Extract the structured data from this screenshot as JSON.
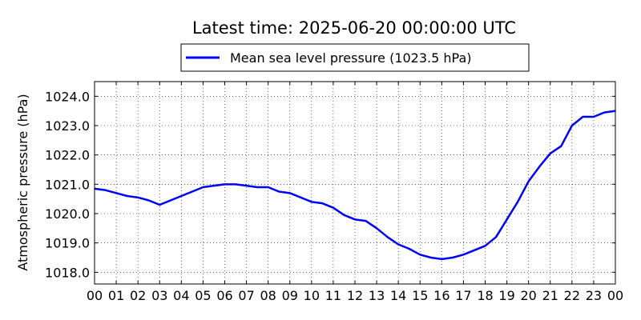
{
  "chart_data": {
    "type": "line",
    "title": "Latest time: 2025-06-20 00:00:00 UTC",
    "xlabel": "",
    "ylabel": "Atmospheric pressure (hPa)",
    "x_ticks": [
      "00",
      "01",
      "02",
      "03",
      "04",
      "05",
      "06",
      "07",
      "08",
      "09",
      "10",
      "11",
      "12",
      "13",
      "14",
      "15",
      "16",
      "17",
      "18",
      "19",
      "20",
      "21",
      "22",
      "23",
      "00"
    ],
    "xlim": [
      0,
      24
    ],
    "ylim": [
      1017.6,
      1024.5
    ],
    "y_ticks": [
      "1018.0",
      "1019.0",
      "1020.0",
      "1021.0",
      "1022.0",
      "1023.0",
      "1024.0"
    ],
    "grid": true,
    "legend_position": "top-center",
    "series": [
      {
        "name": "Mean sea level pressure (1023.5 hPa)",
        "color": "#0000ff",
        "x": [
          0,
          0.5,
          1,
          1.5,
          2,
          2.5,
          3,
          3.5,
          4,
          4.5,
          5,
          5.5,
          6,
          6.5,
          7,
          7.5,
          8,
          8.5,
          9,
          9.5,
          10,
          10.5,
          11,
          11.5,
          12,
          12.5,
          13,
          13.5,
          14,
          14.5,
          15,
          15.5,
          16,
          16.5,
          17,
          17.5,
          18,
          18.5,
          19,
          19.5,
          20,
          20.5,
          21,
          21.5,
          22,
          22.5,
          23,
          23.5,
          24
        ],
        "y": [
          1020.85,
          1020.8,
          1020.7,
          1020.6,
          1020.55,
          1020.45,
          1020.3,
          1020.45,
          1020.6,
          1020.75,
          1020.9,
          1020.95,
          1021.0,
          1021.0,
          1020.95,
          1020.9,
          1020.9,
          1020.75,
          1020.7,
          1020.55,
          1020.4,
          1020.35,
          1020.2,
          1019.95,
          1019.8,
          1019.75,
          1019.5,
          1019.2,
          1018.95,
          1018.8,
          1018.6,
          1018.5,
          1018.45,
          1018.5,
          1018.6,
          1018.75,
          1018.9,
          1019.2,
          1019.8,
          1020.4,
          1021.1,
          1021.6,
          1022.05,
          1022.3,
          1023.0,
          1023.3,
          1023.3,
          1023.45,
          1023.5
        ]
      }
    ]
  }
}
